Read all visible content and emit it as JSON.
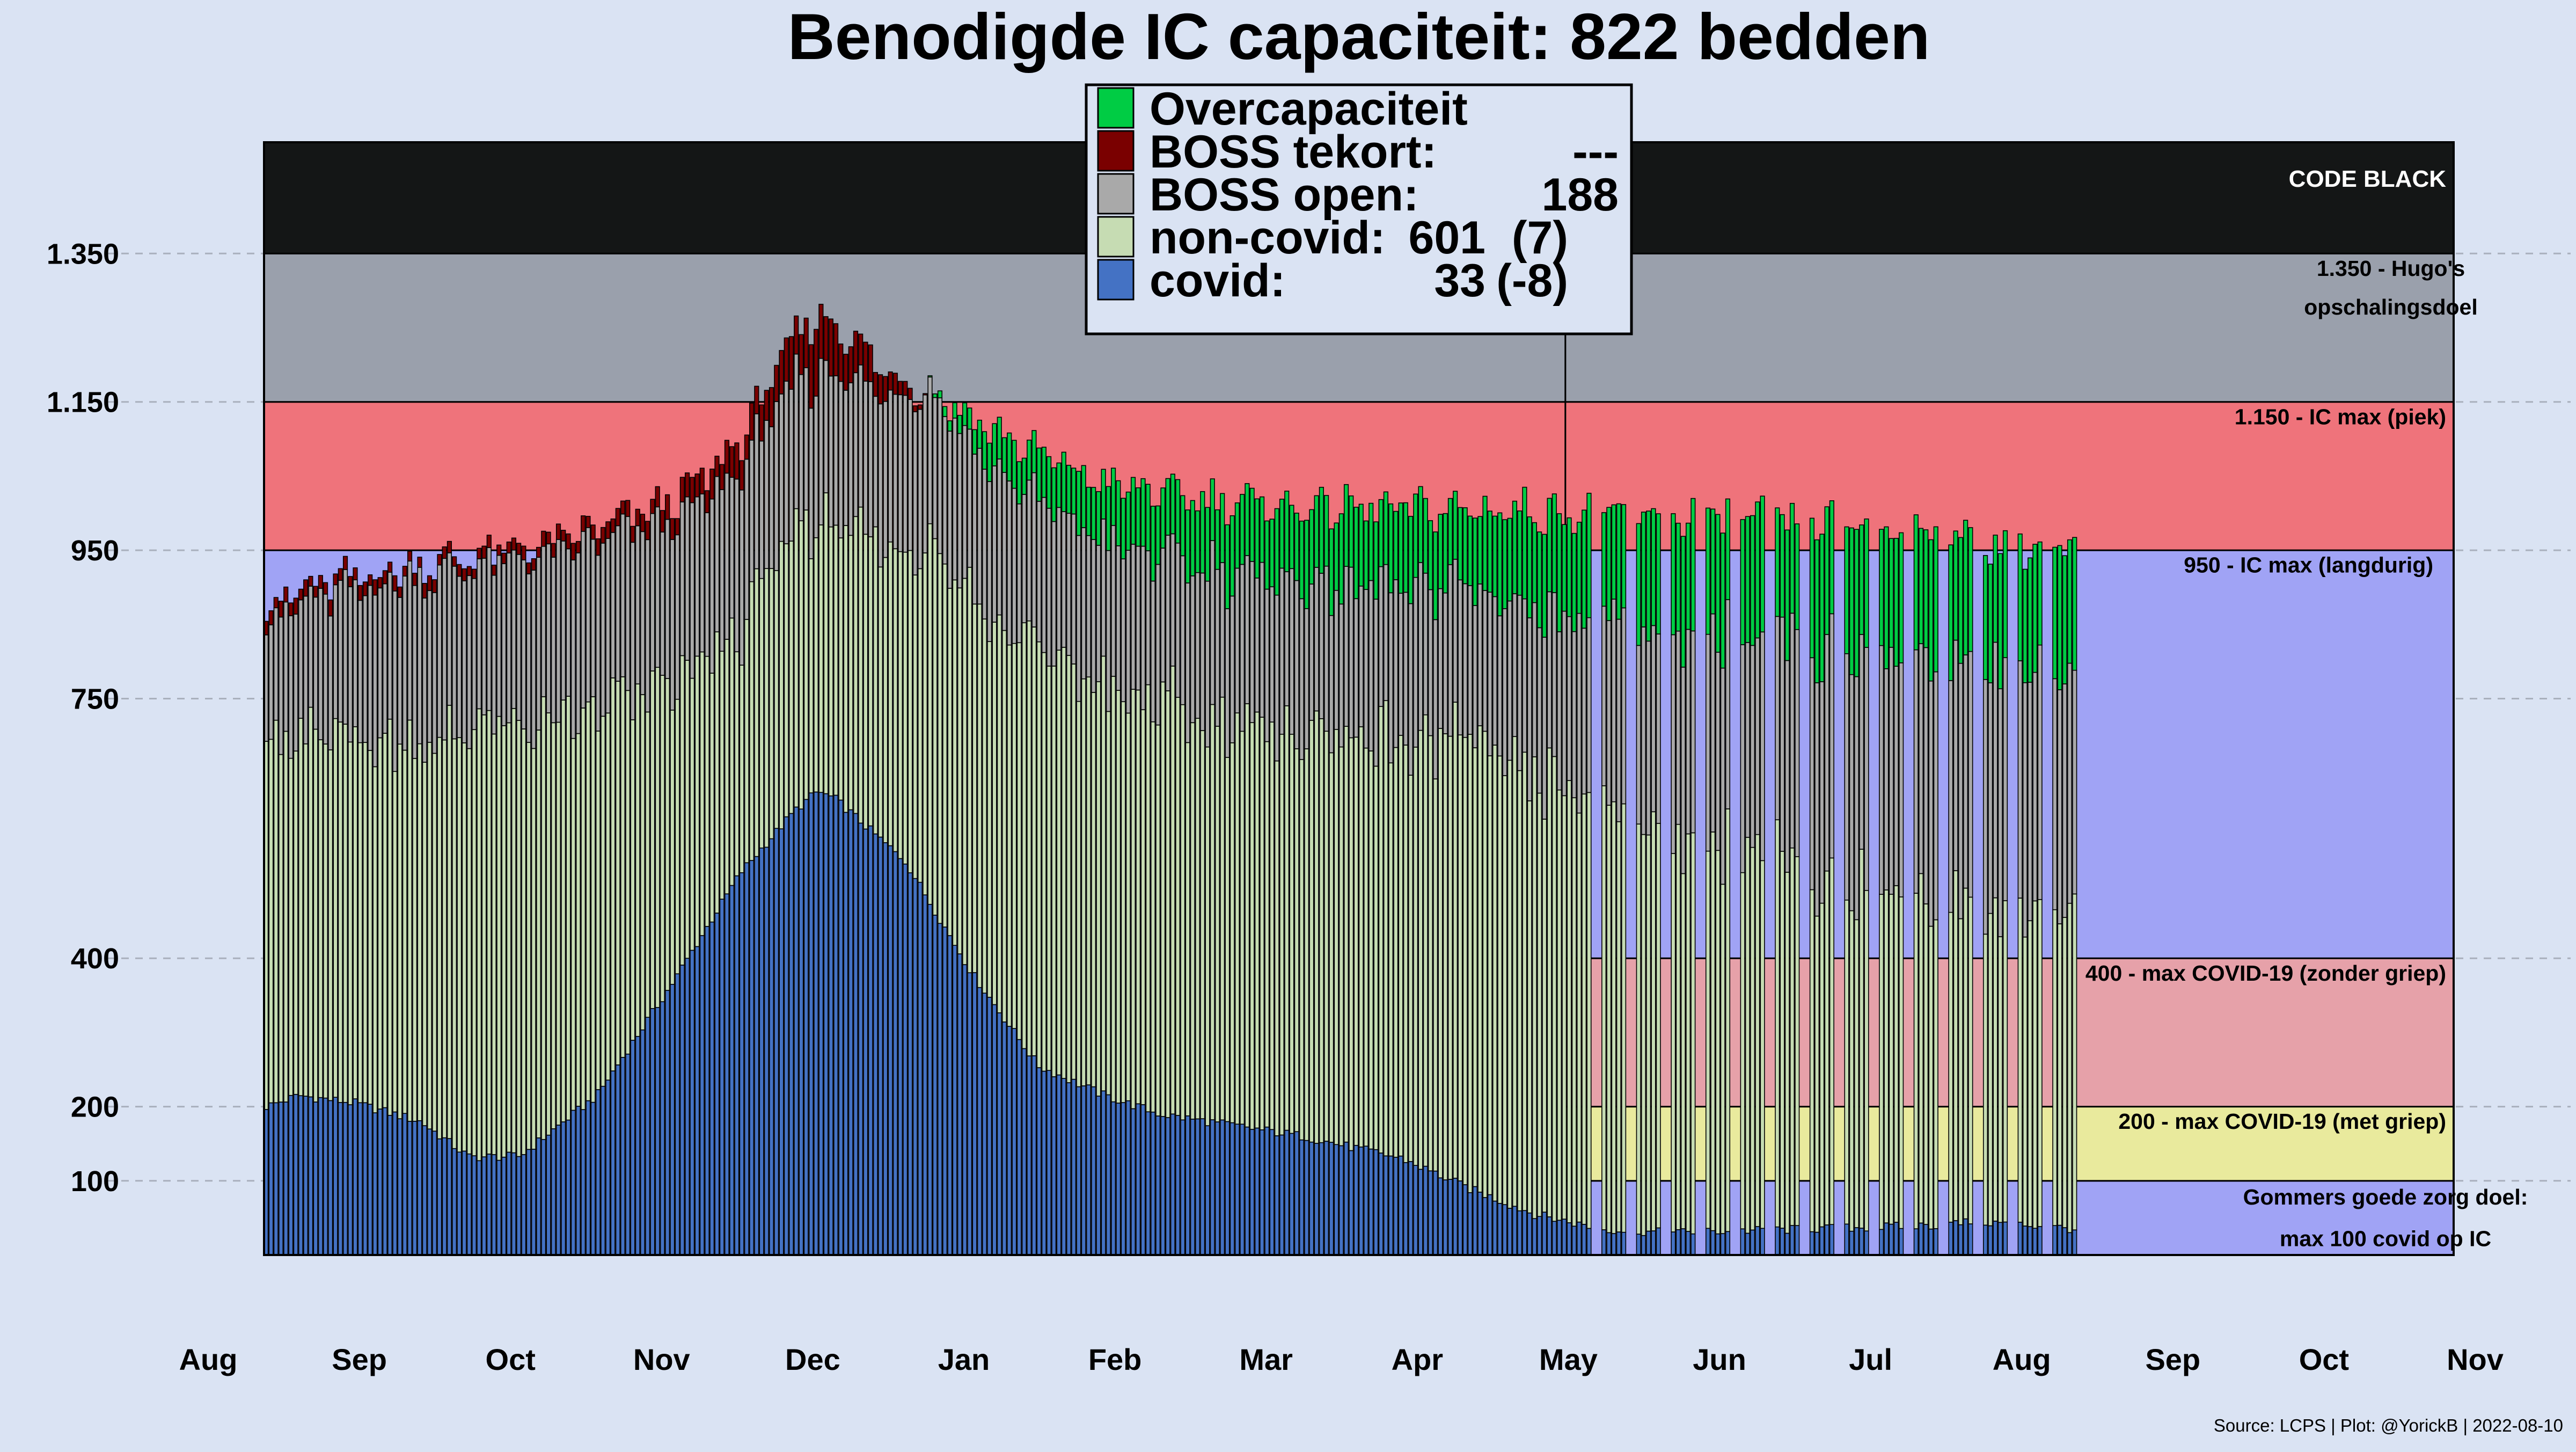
{
  "chart_data": {
    "type": "bar",
    "title": "Benodigde IC capaciteit: 822 bedden",
    "source": "Source: LCPS | Plot: @YorickB |  2022-08-10",
    "y_range": [
      0,
      1500
    ],
    "y_ticks": [
      {
        "value": 100,
        "label": "100"
      },
      {
        "value": 200,
        "label": "200"
      },
      {
        "value": 400,
        "label": "400"
      },
      {
        "value": 750,
        "label": "750"
      },
      {
        "value": 950,
        "label": "950"
      },
      {
        "value": 1150,
        "label": "1.150"
      },
      {
        "value": 1350,
        "label": "1.350"
      }
    ],
    "x_months": [
      "Aug",
      "Sep",
      "Oct",
      "Nov",
      "Dec",
      "Jan",
      "Feb",
      "Mar",
      "Apr",
      "May",
      "Jun",
      "Jul",
      "Aug",
      "Sep",
      "Oct",
      "Nov"
    ],
    "zones_before_may": [
      {
        "from": 0,
        "to": 950,
        "color": "#a0a3f5"
      },
      {
        "from": 950,
        "to": 1150,
        "color": "#ef737b"
      },
      {
        "from": 1150,
        "to": 1350,
        "color": "#9aa0ac"
      },
      {
        "from": 1350,
        "to": 1500,
        "color": "#141616"
      }
    ],
    "zones_after_may": [
      {
        "from": 0,
        "to": 100,
        "color": "#a0a3f5"
      },
      {
        "from": 100,
        "to": 200,
        "color": "#e9ea9d"
      },
      {
        "from": 200,
        "to": 400,
        "color": "#e6a1a9"
      },
      {
        "from": 400,
        "to": 950,
        "color": "#a0a3f5"
      },
      {
        "from": 950,
        "to": 1150,
        "color": "#ef737b"
      },
      {
        "from": 1150,
        "to": 1350,
        "color": "#9aa0ac"
      },
      {
        "from": 1350,
        "to": 1500,
        "color": "#141616"
      }
    ],
    "zone_labels": [
      {
        "text": "CODE BLACK",
        "value": 1450
      },
      {
        "text": "1.350 - Hugo's",
        "value": 1330
      },
      {
        "text": "opschalingsdoel",
        "value": 1278
      },
      {
        "text": "1.150 - IC max (piek)",
        "value": 1130
      },
      {
        "text": "950 - IC max (langdurig)",
        "value": 930
      },
      {
        "text": "400 - max COVID-19 (zonder griep)",
        "value": 380
      },
      {
        "text": "200 - max COVID-19 (met griep)",
        "value": 180
      },
      {
        "text": "Gommers goede zorg doel:",
        "value": 78
      },
      {
        "text": "max 100 covid op IC",
        "value": 22
      }
    ],
    "colors": {
      "overcap": "#00cc44",
      "boss_tekort": "#7a0000",
      "boss_open": "#a9a9a9",
      "noncovid": "#c6dcb3",
      "covid": "#4472c4"
    },
    "series_key_points": {
      "covid": [
        [
          0,
          200
        ],
        [
          15,
          215
        ],
        [
          40,
          205
        ],
        [
          70,
          180
        ],
        [
          92,
          132
        ],
        [
          115,
          133
        ],
        [
          150,
          215
        ],
        [
          185,
          370
        ],
        [
          215,
          515
        ],
        [
          240,
          600
        ],
        [
          250,
          625
        ],
        [
          258,
          615
        ],
        [
          290,
          530
        ],
        [
          320,
          380
        ],
        [
          350,
          255
        ],
        [
          380,
          215
        ],
        [
          405,
          190
        ],
        [
          470,
          160
        ],
        [
          515,
          130
        ],
        [
          545,
          90
        ],
        [
          575,
          55
        ],
        [
          605,
          35
        ],
        [
          635,
          30
        ],
        [
          700,
          35
        ],
        [
          757,
          40
        ],
        [
          775,
          45
        ],
        [
          800,
          40
        ],
        [
          820,
          35
        ]
      ],
      "total": [
        [
          0,
          875
        ],
        [
          20,
          900
        ],
        [
          60,
          925
        ],
        [
          100,
          945
        ],
        [
          130,
          960
        ],
        [
          160,
          990
        ],
        [
          180,
          1010
        ],
        [
          200,
          1050
        ],
        [
          215,
          1100
        ],
        [
          235,
          1215
        ],
        [
          250,
          1270
        ],
        [
          265,
          1240
        ],
        [
          280,
          1190
        ],
        [
          300,
          1170
        ],
        [
          325,
          1120
        ],
        [
          350,
          1080
        ],
        [
          380,
          1040
        ],
        [
          410,
          1025
        ],
        [
          460,
          1010
        ],
        [
          515,
          1005
        ],
        [
          560,
          1005
        ],
        [
          600,
          1000
        ],
        [
          660,
          995
        ],
        [
          730,
          990
        ],
        [
          770,
          970
        ],
        [
          800,
          955
        ],
        [
          820,
          950
        ]
      ],
      "boss_open": [
        [
          0,
          155
        ],
        [
          40,
          215
        ],
        [
          90,
          225
        ],
        [
          150,
          220
        ],
        [
          200,
          215
        ],
        [
          240,
          205
        ],
        [
          270,
          200
        ],
        [
          320,
          195
        ],
        [
          380,
          200
        ],
        [
          440,
          205
        ],
        [
          500,
          205
        ],
        [
          545,
          210
        ],
        [
          560,
          210
        ],
        [
          610,
          260
        ],
        [
          680,
          290
        ],
        [
          740,
          320
        ],
        [
          780,
          325
        ],
        [
          820,
          325
        ]
      ],
      "tekort_peaks": [
        [
          40,
          22
        ],
        [
          110,
          18
        ],
        [
          170,
          28
        ],
        [
          195,
          40
        ],
        [
          230,
          60
        ],
        [
          248,
          95
        ],
        [
          262,
          75
        ],
        [
          280,
          40
        ],
        [
          300,
          0
        ]
      ],
      "overcap": [
        [
          300,
          0
        ],
        [
          330,
          60
        ],
        [
          380,
          95
        ],
        [
          440,
          115
        ],
        [
          500,
          125
        ],
        [
          545,
          120
        ],
        [
          560,
          145
        ],
        [
          620,
          180
        ],
        [
          700,
          200
        ],
        [
          760,
          200
        ],
        [
          820,
          195
        ]
      ]
    },
    "weekly_gaps_after_day": 545,
    "day_count": 822,
    "legend": [
      {
        "label": "Overcapaciteit",
        "value": "",
        "change": "",
        "color": "#00cc44"
      },
      {
        "label": "BOSS tekort:",
        "value": "---",
        "change": "",
        "color": "#7a0000"
      },
      {
        "label": "BOSS open:",
        "value": "188",
        "change": "",
        "color": "#a9a9a9"
      },
      {
        "label": "non-covid:",
        "value": "601",
        "change": "(7)",
        "color": "#c6dcb3"
      },
      {
        "label": "covid:",
        "value": "33",
        "change": "(-8)",
        "color": "#4472c4"
      }
    ]
  }
}
